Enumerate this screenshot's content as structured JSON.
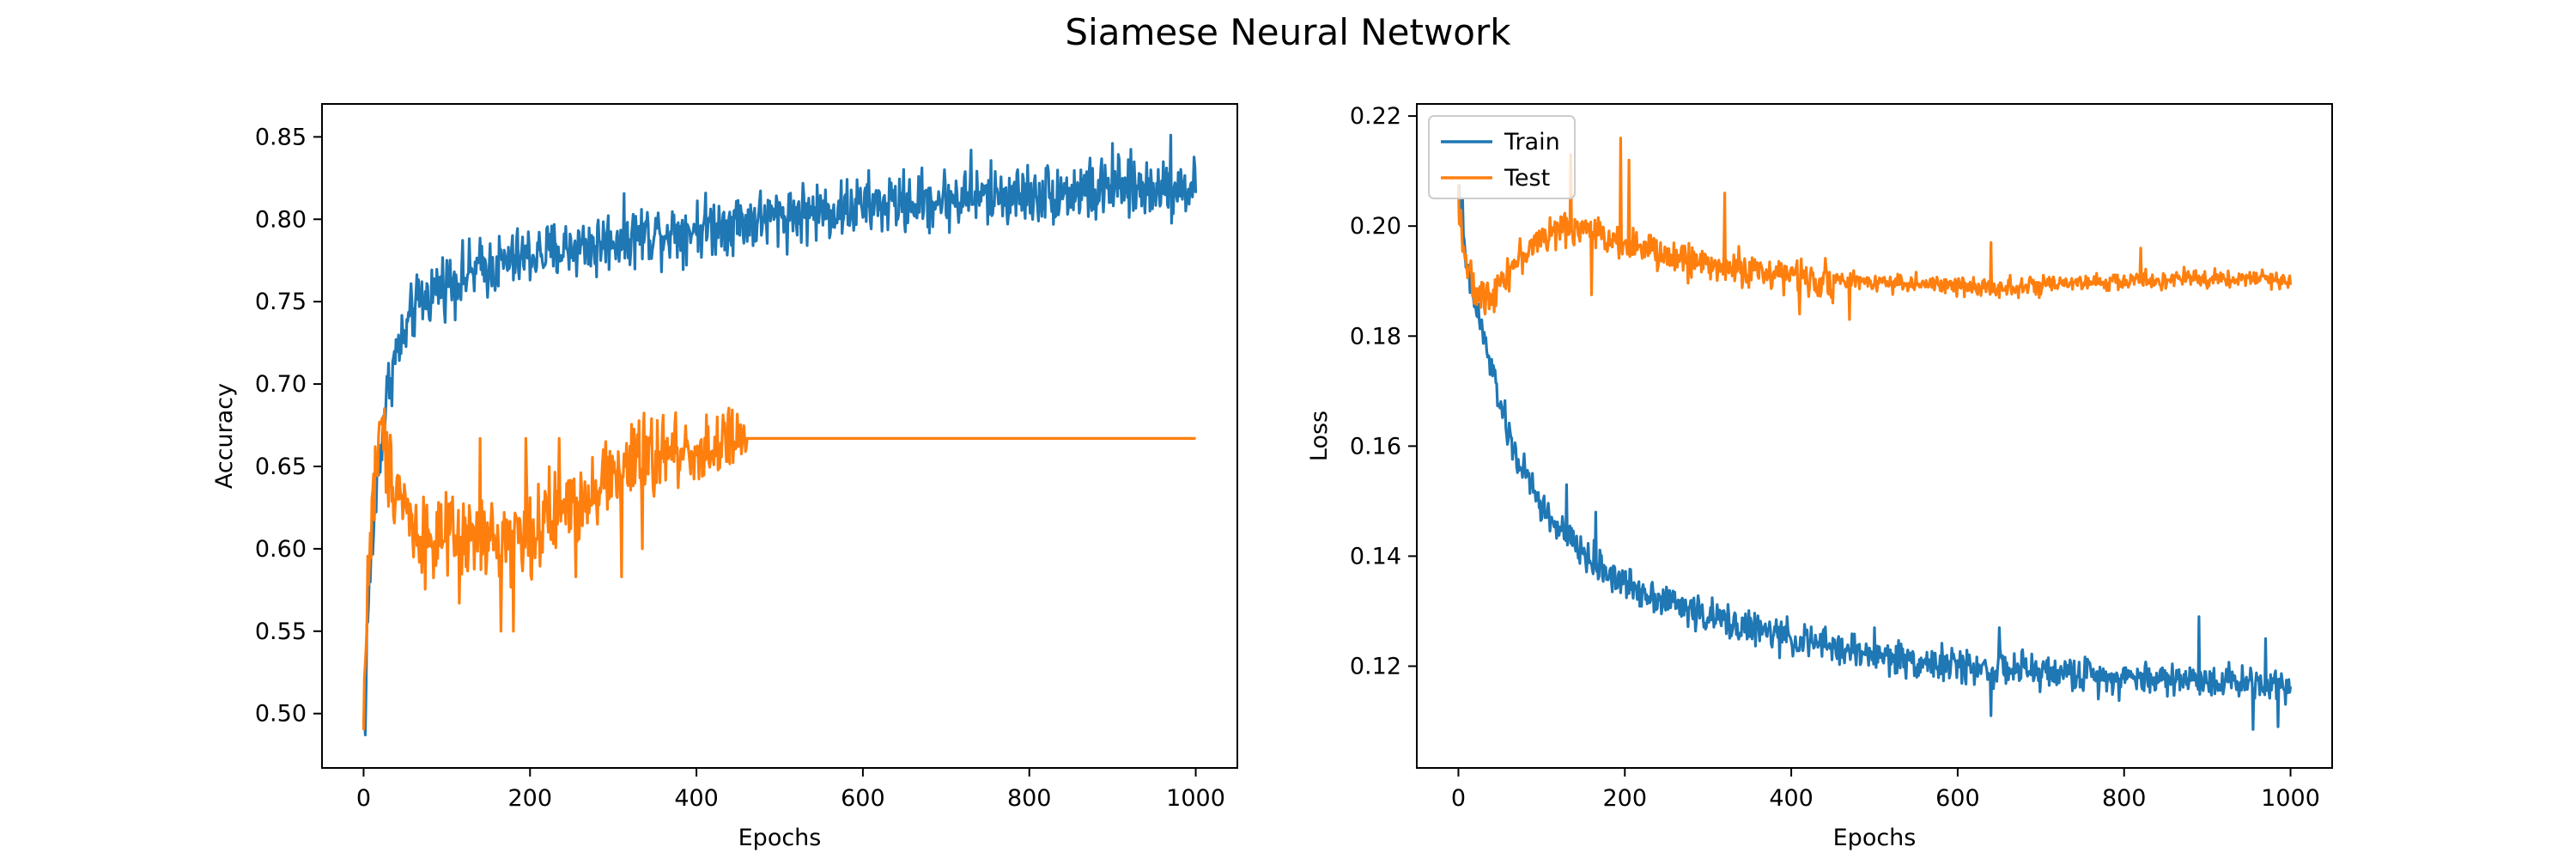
{
  "figure": {
    "title": "Siamese Neural Network"
  },
  "colors": {
    "train": "#1f77b4",
    "test": "#ff7f0e",
    "axes": "#000000",
    "legend_border": "#cccccc"
  },
  "chart_data": [
    {
      "type": "line",
      "title": "",
      "xlabel": "Epochs",
      "ylabel": "Accuracy",
      "xlim": [
        -50,
        1050
      ],
      "ylim": [
        0.467,
        0.87
      ],
      "xticks": [
        0,
        200,
        400,
        600,
        800,
        1000
      ],
      "xtick_labels": [
        "0",
        "200",
        "400",
        "600",
        "800",
        "1000"
      ],
      "yticks": [
        0.5,
        0.55,
        0.6,
        0.65,
        0.7,
        0.75,
        0.8,
        0.85
      ],
      "ytick_labels": [
        "0.50",
        "0.55",
        "0.60",
        "0.65",
        "0.70",
        "0.75",
        "0.80",
        "0.85"
      ],
      "grid": false,
      "legend": null,
      "series": [
        {
          "key": "train",
          "x": [
            0,
            5,
            10,
            15,
            20,
            25,
            30,
            40,
            50,
            60,
            70,
            80,
            90,
            100,
            120,
            140,
            160,
            180,
            200,
            225,
            250,
            275,
            300,
            325,
            350,
            375,
            400,
            425,
            450,
            475,
            500,
            525,
            550,
            575,
            600,
            625,
            650,
            675,
            700,
            725,
            750,
            775,
            800,
            825,
            850,
            875,
            900,
            925,
            950,
            975,
            1000
          ],
          "y": [
            0.49,
            0.56,
            0.6,
            0.63,
            0.66,
            0.68,
            0.7,
            0.72,
            0.73,
            0.745,
            0.75,
            0.755,
            0.76,
            0.762,
            0.765,
            0.77,
            0.772,
            0.775,
            0.778,
            0.78,
            0.783,
            0.785,
            0.788,
            0.79,
            0.792,
            0.793,
            0.795,
            0.797,
            0.799,
            0.8,
            0.802,
            0.804,
            0.805,
            0.806,
            0.808,
            0.809,
            0.81,
            0.811,
            0.812,
            0.813,
            0.814,
            0.815,
            0.815,
            0.816,
            0.817,
            0.818,
            0.818,
            0.819,
            0.82,
            0.82,
            0.82
          ],
          "noise": 0.013,
          "spikes": [
            [
              2,
              0.487
            ],
            [
              48,
              0.725
            ],
            [
              280,
              0.765
            ],
            [
              730,
              0.842
            ],
            [
              900,
              0.846
            ],
            [
              970,
              0.851
            ],
            [
              880,
              0.8
            ],
            [
              945,
              0.805
            ]
          ]
        },
        {
          "key": "test",
          "x": [
            0,
            5,
            10,
            15,
            20,
            25,
            30,
            40,
            50,
            55,
            60,
            70,
            80,
            100,
            120,
            140,
            160,
            180,
            200,
            220,
            240,
            260,
            280,
            300,
            320,
            340,
            360,
            380,
            400,
            420,
            440,
            455,
            460,
            1000
          ],
          "y": [
            0.5,
            0.58,
            0.62,
            0.65,
            0.67,
            0.66,
            0.65,
            0.64,
            0.63,
            0.62,
            0.61,
            0.61,
            0.605,
            0.605,
            0.605,
            0.605,
            0.605,
            0.61,
            0.61,
            0.615,
            0.625,
            0.63,
            0.64,
            0.645,
            0.65,
            0.655,
            0.657,
            0.66,
            0.66,
            0.66,
            0.664,
            0.666,
            0.667,
            0.667
          ],
          "noise": 0.018,
          "spikes": [
            [
              0,
              0.49
            ],
            [
              25,
              0.685
            ],
            [
              115,
              0.567
            ],
            [
              165,
              0.55
            ],
            [
              180,
              0.55
            ],
            [
              140,
              0.667
            ],
            [
              195,
              0.667
            ],
            [
              235,
              0.667
            ],
            [
              255,
              0.583
            ],
            [
              310,
              0.583
            ],
            [
              335,
              0.6
            ]
          ]
        }
      ]
    },
    {
      "type": "line",
      "title": "",
      "xlabel": "Epochs",
      "ylabel": "Loss",
      "xlim": [
        -50,
        1050
      ],
      "ylim": [
        0.1015,
        0.2222
      ],
      "xticks": [
        0,
        200,
        400,
        600,
        800,
        1000
      ],
      "xtick_labels": [
        "0",
        "200",
        "400",
        "600",
        "800",
        "1000"
      ],
      "yticks": [
        0.12,
        0.14,
        0.16,
        0.18,
        0.2,
        0.22
      ],
      "ytick_labels": [
        "0.12",
        "0.14",
        "0.16",
        "0.18",
        "0.20",
        "0.22"
      ],
      "grid": false,
      "legend": {
        "position": "upper-left",
        "entries": [
          {
            "key": "train",
            "label": "Train"
          },
          {
            "key": "test",
            "label": "Test"
          }
        ]
      },
      "series": [
        {
          "key": "train",
          "name": "Train",
          "x": [
            0,
            5,
            10,
            20,
            30,
            40,
            50,
            60,
            70,
            80,
            90,
            100,
            120,
            140,
            160,
            180,
            200,
            250,
            300,
            350,
            400,
            450,
            500,
            550,
            600,
            650,
            700,
            750,
            800,
            850,
            900,
            950,
            1000
          ],
          "y": [
            0.207,
            0.198,
            0.192,
            0.186,
            0.18,
            0.174,
            0.168,
            0.162,
            0.158,
            0.155,
            0.152,
            0.149,
            0.145,
            0.142,
            0.139,
            0.137,
            0.135,
            0.132,
            0.129,
            0.127,
            0.125,
            0.1235,
            0.122,
            0.121,
            0.12,
            0.1195,
            0.119,
            0.1185,
            0.118,
            0.1178,
            0.1175,
            0.1172,
            0.1168
          ],
          "noise": 0.0022,
          "spikes": [
            [
              5,
              0.205
            ],
            [
              130,
              0.153
            ],
            [
              165,
              0.148
            ],
            [
              500,
              0.127
            ],
            [
              650,
              0.127
            ],
            [
              890,
              0.129
            ],
            [
              970,
              0.125
            ],
            [
              955,
              0.1085
            ],
            [
              985,
              0.109
            ],
            [
              640,
              0.111
            ]
          ]
        },
        {
          "key": "test",
          "name": "Test",
          "x": [
            0,
            5,
            10,
            15,
            20,
            25,
            30,
            40,
            50,
            60,
            80,
            100,
            120,
            140,
            160,
            180,
            200,
            220,
            240,
            260,
            280,
            300,
            350,
            400,
            450,
            500,
            550,
            600,
            650,
            700,
            750,
            800,
            850,
            900,
            950,
            1000
          ],
          "y": [
            0.206,
            0.198,
            0.193,
            0.19,
            0.188,
            0.187,
            0.187,
            0.188,
            0.19,
            0.192,
            0.195,
            0.198,
            0.199,
            0.2,
            0.199,
            0.198,
            0.197,
            0.196,
            0.195,
            0.194,
            0.194,
            0.193,
            0.192,
            0.191,
            0.19,
            0.19,
            0.1895,
            0.189,
            0.189,
            0.189,
            0.1895,
            0.19,
            0.1902,
            0.1905,
            0.1905,
            0.19
          ],
          "noise": 0.0022,
          "spikes": [
            [
              135,
              0.213
            ],
            [
              160,
              0.215
            ],
            [
              195,
              0.216
            ],
            [
              205,
              0.212
            ],
            [
              160,
              0.1875
            ],
            [
              320,
              0.206
            ],
            [
              410,
              0.184
            ],
            [
              470,
              0.183
            ],
            [
              640,
              0.197
            ],
            [
              820,
              0.196
            ]
          ]
        }
      ]
    }
  ]
}
